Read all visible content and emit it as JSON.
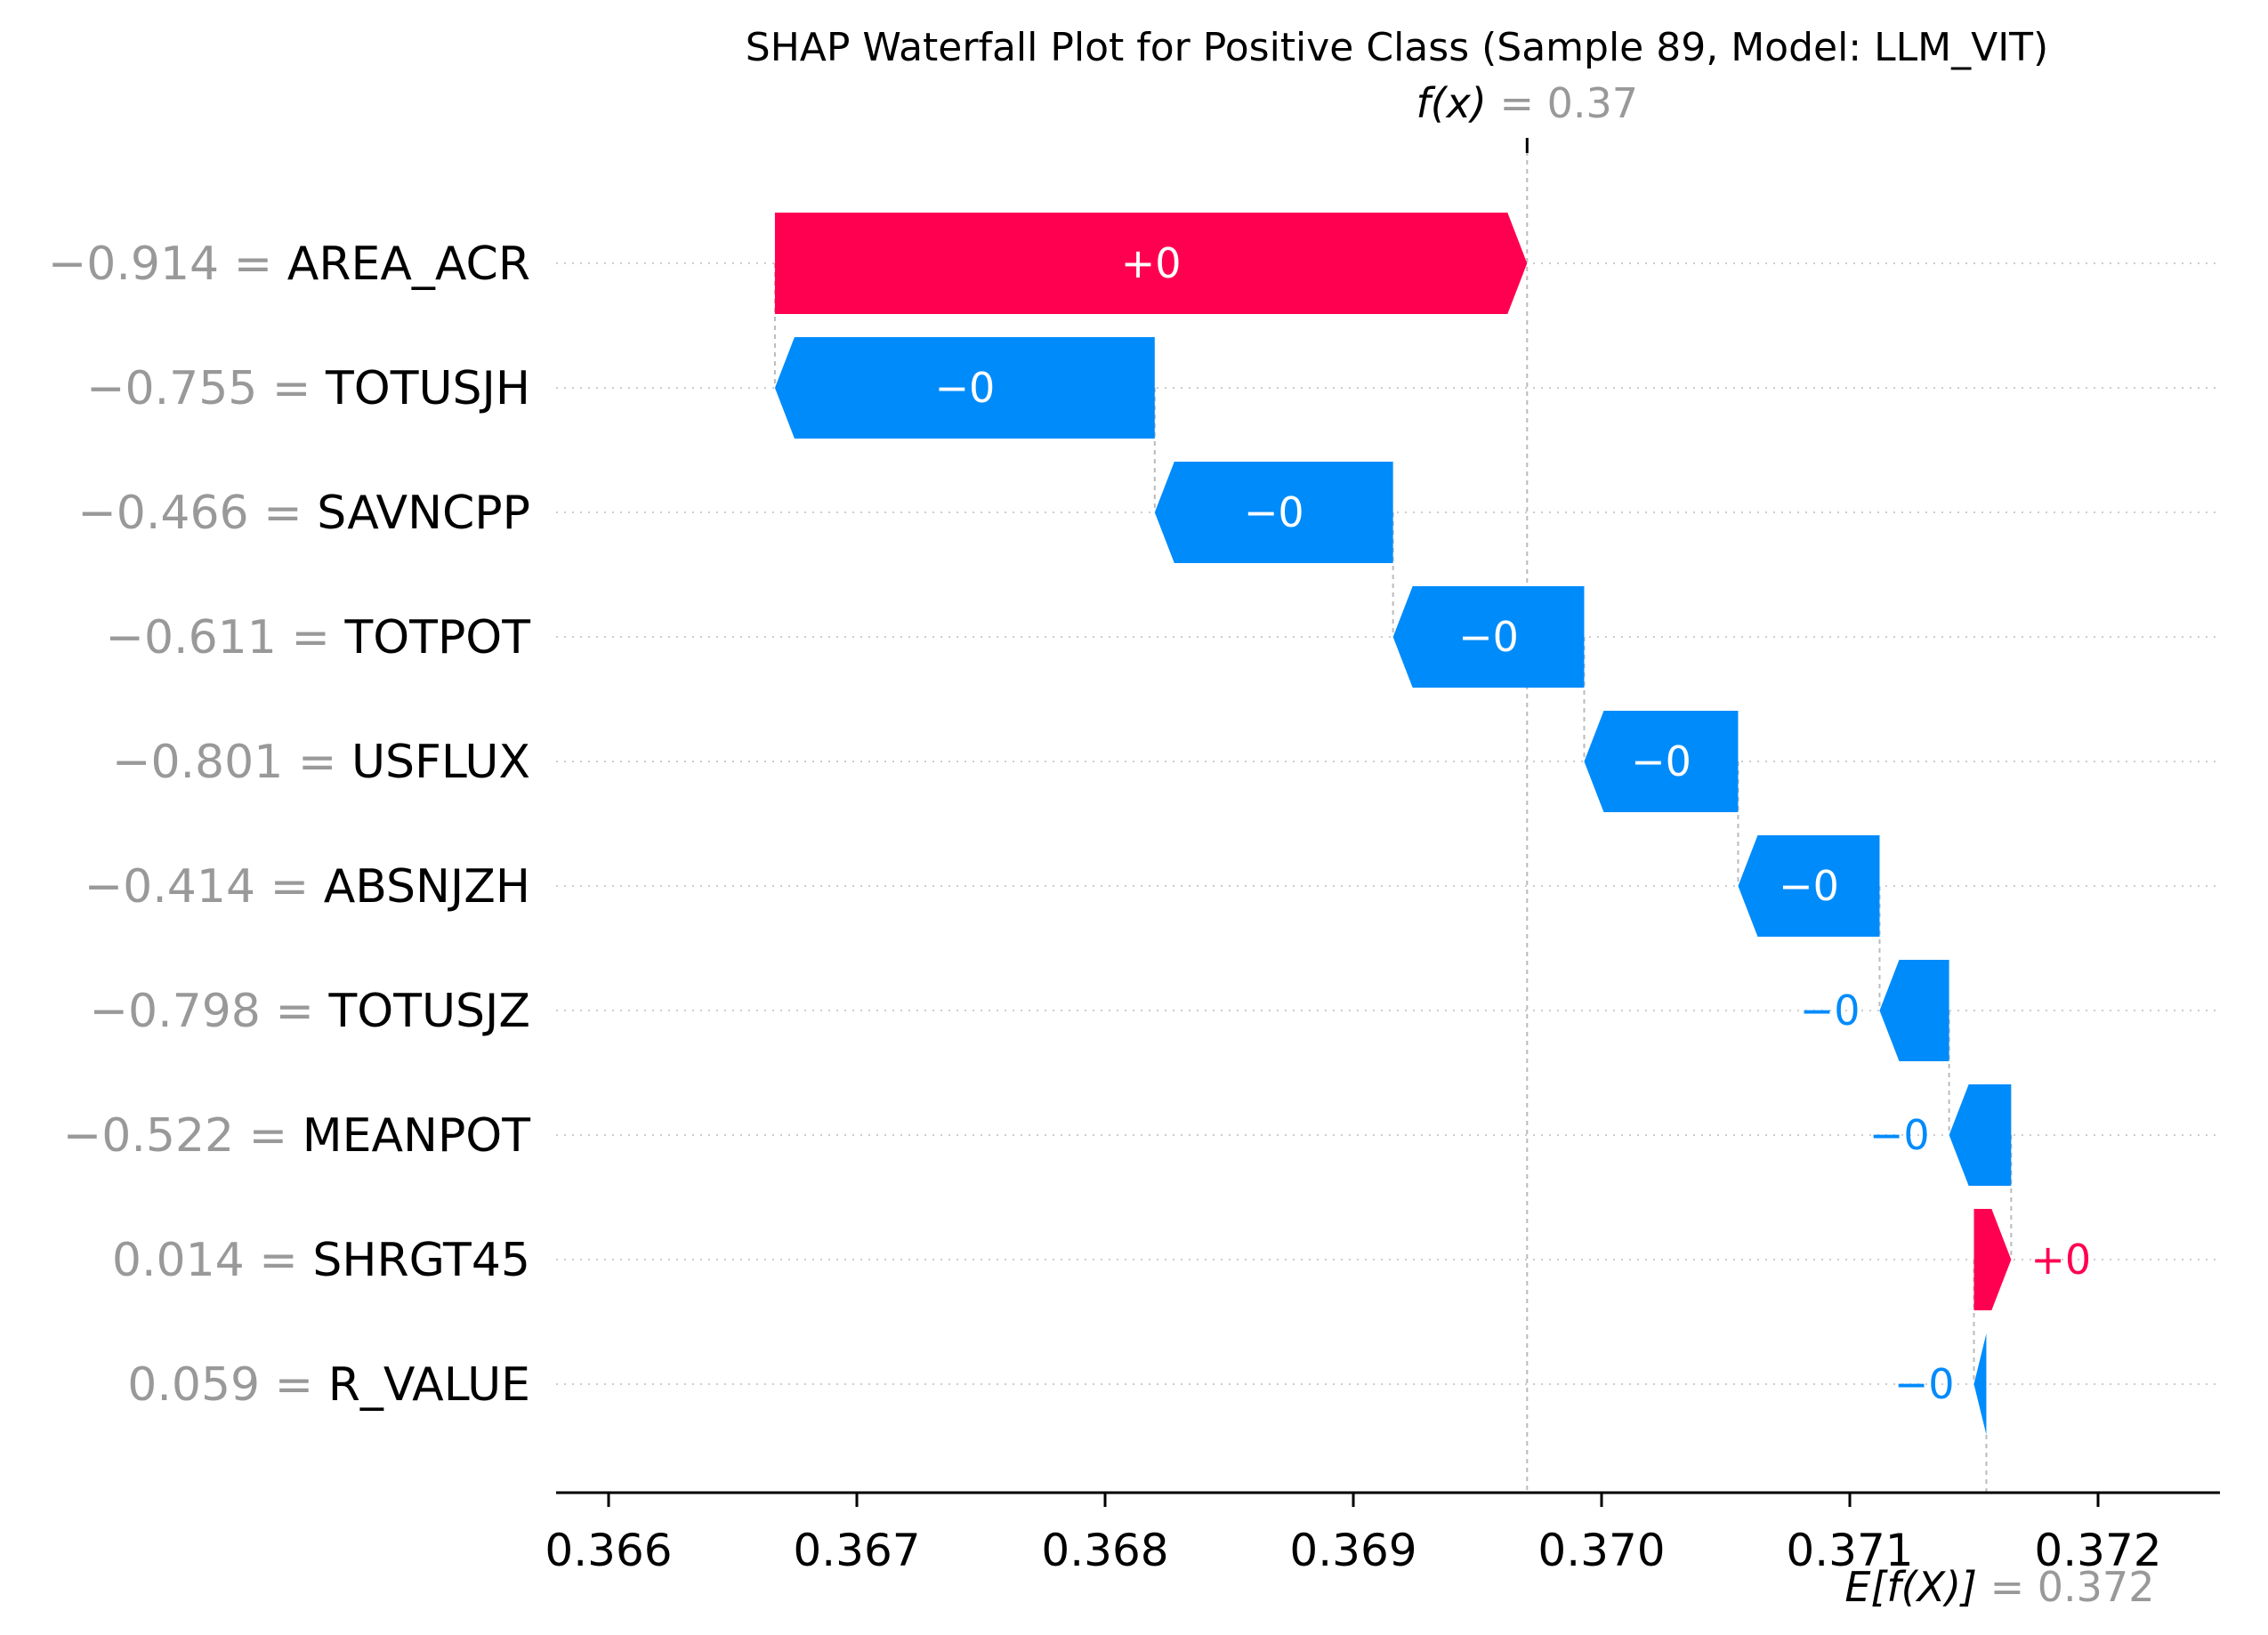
{
  "chart_data": {
    "type": "waterfall",
    "title": "SHAP Waterfall Plot for Positive Class (Sample 89, Model: LLM_VIT)",
    "fx": {
      "label": "f(x)",
      "value_text": "= 0.37",
      "value": 0.3697
    },
    "efx": {
      "label": "E[f(X)]",
      "value_text": "= 0.372",
      "value": 0.37155
    },
    "xlim": [
      0.3658,
      0.3725
    ],
    "x_ticks": [
      0.366,
      0.367,
      0.368,
      0.369,
      0.37,
      0.371,
      0.372
    ],
    "x_tick_labels": [
      "0.366",
      "0.367",
      "0.368",
      "0.369",
      "0.370",
      "0.371",
      "0.372"
    ],
    "features": [
      {
        "value": "−0.914 =",
        "name": "AREA_ACR",
        "start": 0.36667,
        "end": 0.3697,
        "label": "+0"
      },
      {
        "value": "−0.755 =",
        "name": "TOTUSJH",
        "start": 0.3682,
        "end": 0.36667,
        "label": "−0"
      },
      {
        "value": "−0.466 =",
        "name": "SAVNCPP",
        "start": 0.36916,
        "end": 0.3682,
        "label": "−0"
      },
      {
        "value": "−0.611 =",
        "name": "TOTPOT",
        "start": 0.36993,
        "end": 0.36916,
        "label": "−0"
      },
      {
        "value": "−0.801 =",
        "name": "USFLUX",
        "start": 0.37055,
        "end": 0.36993,
        "label": "−0"
      },
      {
        "value": "−0.414 =",
        "name": "ABSNJZH",
        "start": 0.37112,
        "end": 0.37055,
        "label": "−0"
      },
      {
        "value": "−0.798 =",
        "name": "TOTUSJZ",
        "start": 0.3714,
        "end": 0.37112,
        "label": "−0"
      },
      {
        "value": "−0.522 =",
        "name": "MEANPOT",
        "start": 0.37165,
        "end": 0.3714,
        "label": "−0"
      },
      {
        "value": "0.014 =",
        "name": "SHRGT45",
        "start": 0.3715,
        "end": 0.37165,
        "label": "+0"
      },
      {
        "value": "0.059 =",
        "name": "R_VALUE",
        "start": 0.37155,
        "end": 0.3715,
        "label": "−0"
      }
    ],
    "colors": {
      "positive": "#ff0051",
      "negative": "#008bfb",
      "muted": "#999999",
      "axis": "#000000"
    }
  }
}
